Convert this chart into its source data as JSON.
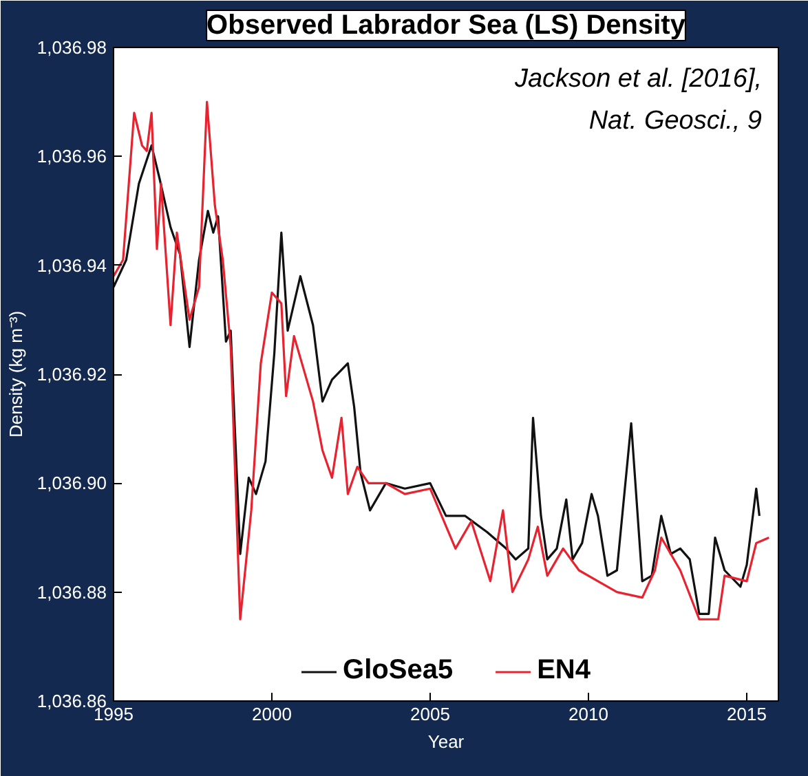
{
  "chart_data": {
    "type": "line",
    "title": "Observed Labrador Sea (LS) Density",
    "xlabel": "Year",
    "ylabel": "Density (kg m⁻³)",
    "xlim": [
      1995,
      2016
    ],
    "xticks": [
      1995,
      2000,
      2005,
      2010,
      2015
    ],
    "ylim": [
      1036.86,
      1036.98
    ],
    "yticks": [
      {
        "value": 1036.86,
        "label": "1,036.86"
      },
      {
        "value": 1036.88,
        "label": "1,036.88"
      },
      {
        "value": 1036.9,
        "label": "1,036.90"
      },
      {
        "value": 1036.92,
        "label": "1,036.92"
      },
      {
        "value": 1036.94,
        "label": "1,036.94"
      },
      {
        "value": 1036.96,
        "label": "1,036.96"
      },
      {
        "value": 1036.98,
        "label": "1,036.98"
      }
    ],
    "grid": false,
    "legend": "bottom",
    "line_style": "solid",
    "annotations": [
      "Jackson et al. [2016],",
      "Nat. Geosci., 9"
    ],
    "series": [
      {
        "name": "GloSea5",
        "color": "#111111",
        "x": [
          1995.0,
          1995.4,
          1995.8,
          1996.2,
          1996.45,
          1996.8,
          1997.1,
          1997.4,
          1997.7,
          1997.98,
          1998.15,
          1998.3,
          1998.55,
          1998.7,
          1999.0,
          1999.27,
          1999.5,
          1999.8,
          2000.08,
          2000.3,
          2000.5,
          2000.9,
          2001.3,
          2001.6,
          2001.9,
          2002.4,
          2002.6,
          2002.8,
          2003.1,
          2003.6,
          2004.2,
          2005.0,
          2005.5,
          2006.1,
          2006.8,
          2007.4,
          2007.7,
          2008.1,
          2008.25,
          2008.5,
          2008.7,
          2009.0,
          2009.3,
          2009.5,
          2009.8,
          2010.1,
          2010.3,
          2010.6,
          2010.9,
          2011.35,
          2011.7,
          2012.0,
          2012.3,
          2012.6,
          2012.9,
          2013.2,
          2013.5,
          2013.8,
          2014.0,
          2014.3,
          2014.8,
          2015.0,
          2015.3,
          2015.4
        ],
        "values": [
          1036.936,
          1036.941,
          1036.955,
          1036.962,
          1036.956,
          1036.947,
          1036.942,
          1036.925,
          1036.941,
          1036.95,
          1036.946,
          1036.949,
          1036.926,
          1036.928,
          1036.887,
          1036.901,
          1036.898,
          1036.904,
          1036.924,
          1036.946,
          1036.928,
          1036.938,
          1036.929,
          1036.915,
          1036.919,
          1036.922,
          1036.914,
          1036.902,
          1036.895,
          1036.9,
          1036.899,
          1036.9,
          1036.894,
          1036.894,
          1036.891,
          1036.888,
          1036.886,
          1036.888,
          1036.912,
          1036.894,
          1036.886,
          1036.888,
          1036.897,
          1036.886,
          1036.889,
          1036.898,
          1036.894,
          1036.883,
          1036.884,
          1036.911,
          1036.882,
          1036.883,
          1036.894,
          1036.887,
          1036.888,
          1036.886,
          1036.876,
          1036.876,
          1036.89,
          1036.884,
          1036.881,
          1036.885,
          1036.899,
          1036.894
        ]
      },
      {
        "name": "EN4",
        "color": "#e8222e",
        "x": [
          1995.0,
          1995.3,
          1995.65,
          1995.9,
          1996.05,
          1996.2,
          1996.37,
          1996.5,
          1996.8,
          1997.0,
          1997.4,
          1997.7,
          1997.95,
          1998.2,
          1998.45,
          1998.7,
          1999.0,
          1999.35,
          1999.65,
          2000.0,
          2000.3,
          2000.45,
          2000.7,
          2000.95,
          2001.3,
          2001.6,
          2001.9,
          2002.2,
          2002.4,
          2002.7,
          2003.05,
          2003.6,
          2004.2,
          2005.0,
          2005.8,
          2006.3,
          2006.9,
          2007.3,
          2007.6,
          2008.1,
          2008.4,
          2008.7,
          2009.2,
          2009.7,
          2010.3,
          2010.9,
          2011.7,
          2012.1,
          2012.3,
          2012.9,
          2013.5,
          2014.1,
          2014.3,
          2015.0,
          2015.3,
          2015.7
        ],
        "values": [
          1036.938,
          1036.941,
          1036.968,
          1036.962,
          1036.961,
          1036.968,
          1036.943,
          1036.955,
          1036.929,
          1036.946,
          1036.93,
          1036.936,
          1036.97,
          1036.951,
          1036.941,
          1036.925,
          1036.875,
          1036.895,
          1036.922,
          1036.935,
          1036.933,
          1036.916,
          1036.927,
          1036.922,
          1036.915,
          1036.906,
          1036.901,
          1036.912,
          1036.898,
          1036.903,
          1036.9,
          1036.9,
          1036.898,
          1036.899,
          1036.888,
          1036.893,
          1036.882,
          1036.895,
          1036.88,
          1036.886,
          1036.892,
          1036.883,
          1036.888,
          1036.884,
          1036.882,
          1036.88,
          1036.879,
          1036.884,
          1036.89,
          1036.884,
          1036.875,
          1036.875,
          1036.883,
          1036.882,
          1036.889,
          1036.89
        ]
      }
    ]
  }
}
